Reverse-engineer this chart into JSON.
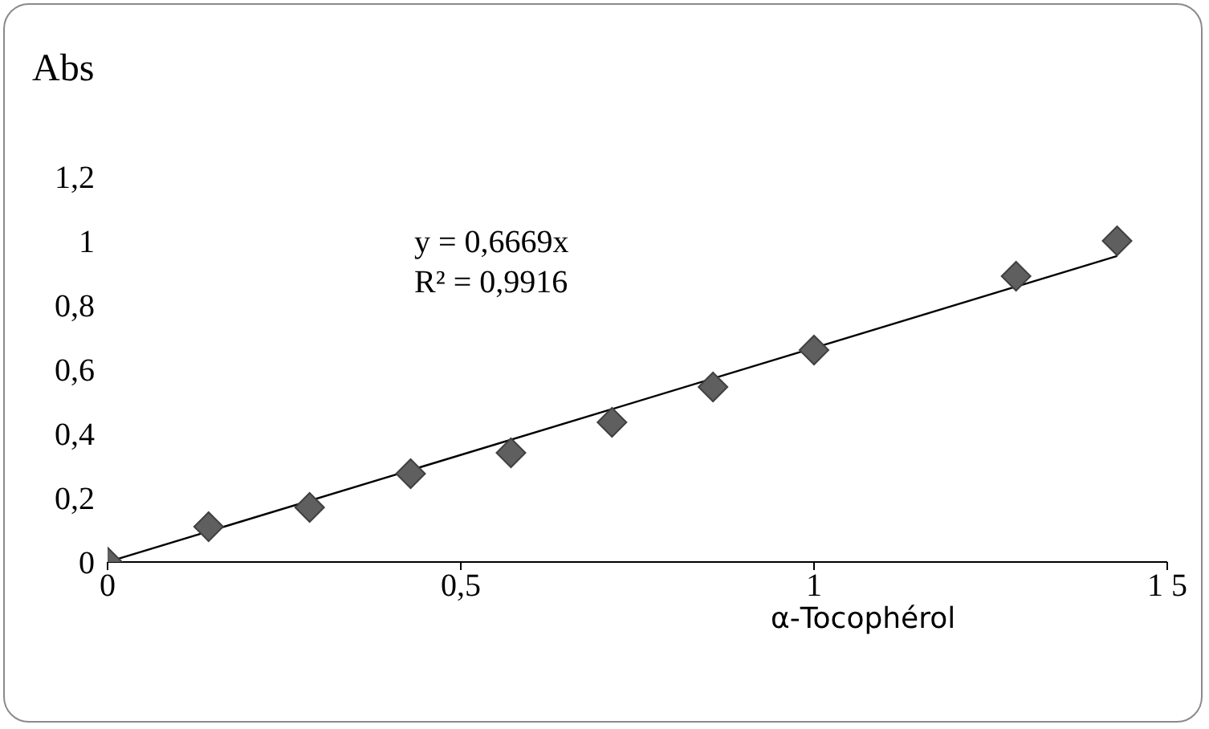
{
  "chart_data": {
    "type": "scatter",
    "ylabel": "Abs",
    "xlabel": "α-Tocophérol",
    "annotations": [
      "y = 0,6669x",
      "R² = 0,9916"
    ],
    "xlim": [
      0,
      1.5
    ],
    "xticks": [
      0,
      {
        "value": 0.5,
        "label": "0,5"
      },
      1,
      {
        "value": 1.5,
        "label": "1 5"
      }
    ],
    "ylim": [
      0,
      1.2
    ],
    "yticks": [
      0,
      {
        "value": 0.2,
        "label": "0,2"
      },
      {
        "value": 0.4,
        "label": "0,4"
      },
      {
        "value": 0.6,
        "label": "0,6"
      },
      {
        "value": 0.8,
        "label": "0,8"
      },
      1,
      {
        "value": 1.2,
        "label": "1,2"
      }
    ],
    "grid": false,
    "series": [
      {
        "color": "#5f5f5f",
        "marker": "diamond",
        "x": [
          0,
          0.143,
          0.286,
          0.429,
          0.571,
          0.714,
          0.857,
          1.0,
          1.286,
          1.429
        ],
        "values": [
          0,
          0.11,
          0.17,
          0.275,
          0.34,
          0.435,
          0.545,
          0.66,
          0.89,
          1.0
        ]
      },
      {
        "type": "line",
        "color": "#000000",
        "line_style": "solid",
        "marker": "none",
        "x": [
          0,
          1.429
        ],
        "values": [
          0,
          0.953
        ]
      }
    ]
  }
}
